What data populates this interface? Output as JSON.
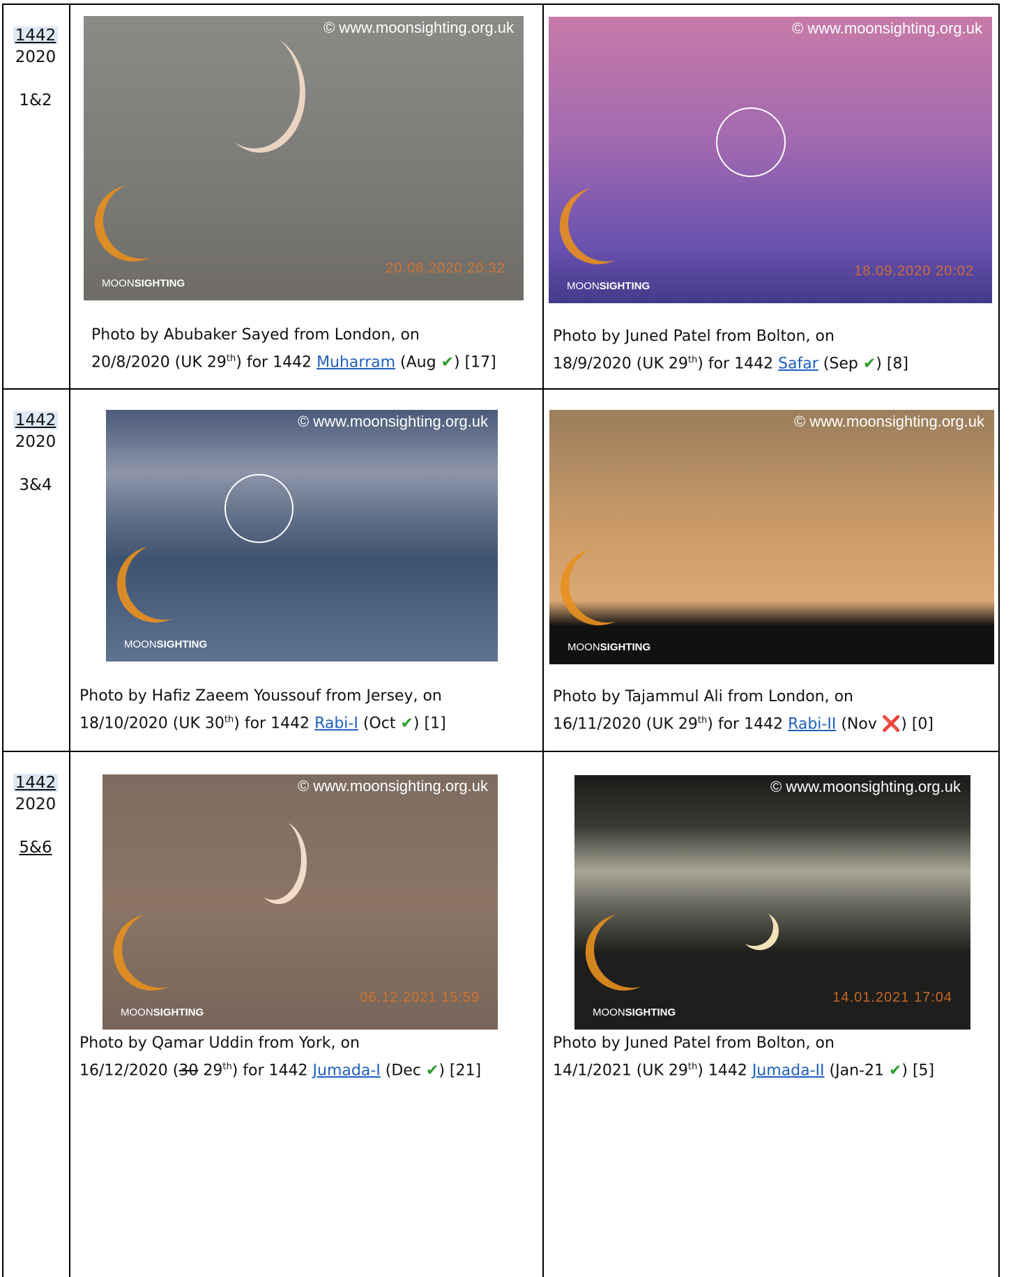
{
  "rows": [
    {
      "label": {
        "year": "1442",
        "greg": "2020",
        "months": "1&2"
      },
      "months_underline": false,
      "cells": [
        {
          "photo": {
            "watermark": "© www.moonsighting.org.uk",
            "stamp": "20.08.2020 20:32",
            "logo_a": "MOON",
            "logo_b": "SIGHTING"
          },
          "caption": {
            "line1": "Photo by Abubaker Sayed from London, on",
            "line2": [
              {
                "text": "20/8/2020 (UK 29",
                "style": "plain"
              },
              {
                "text": "th",
                "style": "sup"
              },
              {
                "text": ") for 1442 ",
                "style": "plain"
              },
              {
                "text": "Muharram",
                "style": "link"
              },
              {
                "text": " (Aug ",
                "style": "plain"
              },
              {
                "text": "✔",
                "style": "check"
              },
              {
                "text": ") [17]",
                "style": "plain"
              }
            ]
          }
        },
        {
          "photo": {
            "watermark": "© www.moonsighting.org.uk",
            "stamp": "18.09.2020 20:02",
            "logo_a": "MOON",
            "logo_b": "SIGHTING"
          },
          "caption": {
            "line1": "Photo by Juned Patel from Bolton, on",
            "line2": [
              {
                "text": "18/9/2020 (UK 29",
                "style": "plain"
              },
              {
                "text": "th",
                "style": "sup"
              },
              {
                "text": ") for 1442 ",
                "style": "plain"
              },
              {
                "text": "Safar",
                "style": "link"
              },
              {
                "text": " (Sep ",
                "style": "plain"
              },
              {
                "text": "✔",
                "style": "check"
              },
              {
                "text": ") [8]",
                "style": "plain"
              }
            ]
          }
        }
      ]
    },
    {
      "label": {
        "year": "1442",
        "greg": "2020",
        "months": "3&4"
      },
      "months_underline": false,
      "cells": [
        {
          "photo": {
            "watermark": "© www.moonsighting.org.uk",
            "logo_a": "MOON",
            "logo_b": "SIGHTING"
          },
          "caption": {
            "line1": "Photo by Hafiz Zaeem Youssouf from Jersey, on",
            "line2": [
              {
                "text": "18/10/2020 (UK 30",
                "style": "plain"
              },
              {
                "text": "th",
                "style": "sup"
              },
              {
                "text": ") for 1442 ",
                "style": "plain"
              },
              {
                "text": "Rabi-I",
                "style": "link"
              },
              {
                "text": " (Oct ",
                "style": "plain"
              },
              {
                "text": "✔",
                "style": "check"
              },
              {
                "text": ") [1]",
                "style": "plain"
              }
            ]
          }
        },
        {
          "photo": {
            "watermark": "© www.moonsighting.org.uk",
            "logo_a": "MOON",
            "logo_b": "SIGHTING"
          },
          "caption": {
            "line1": "Photo by Tajammul Ali from London, on",
            "line2": [
              {
                "text": "16/11/2020 (UK 29",
                "style": "plain"
              },
              {
                "text": "th",
                "style": "sup"
              },
              {
                "text": ") for 1442 ",
                "style": "plain"
              },
              {
                "text": "Rabi-II",
                "style": "link"
              },
              {
                "text": " (Nov ",
                "style": "plain"
              },
              {
                "text": "❌",
                "style": "cross"
              },
              {
                "text": ") [0]",
                "style": "plain"
              }
            ]
          }
        }
      ]
    },
    {
      "label": {
        "year": "1442",
        "greg": "2020",
        "months": "5&6"
      },
      "months_underline": true,
      "cells": [
        {
          "photo": {
            "watermark": "© www.moonsighting.org.uk",
            "stamp": "06.12.2021 15:59",
            "logo_a": "MOON",
            "logo_b": "SIGHTING"
          },
          "caption": {
            "line1": "Photo by Qamar Uddin from York, on",
            "line2": [
              {
                "text": "16/12/2020 (",
                "style": "plain"
              },
              {
                "text": "30",
                "style": "strike"
              },
              {
                "text": " 29",
                "style": "plain"
              },
              {
                "text": "th",
                "style": "sup"
              },
              {
                "text": ") for 1442 ",
                "style": "plain"
              },
              {
                "text": "Jumada-I",
                "style": "link"
              },
              {
                "text": " (Dec ",
                "style": "plain"
              },
              {
                "text": "✔",
                "style": "check"
              },
              {
                "text": ") [21]",
                "style": "plain"
              }
            ]
          }
        },
        {
          "photo": {
            "watermark": "© www.moonsighting.org.uk",
            "stamp": "14.01.2021 17:04",
            "logo_a": "MOON",
            "logo_b": "SIGHTING"
          },
          "caption": {
            "line1": "Photo by Juned Patel from Bolton, on",
            "line2": [
              {
                "text": "14/1/2021 (UK 29",
                "style": "plain"
              },
              {
                "text": "th",
                "style": "sup"
              },
              {
                "text": ") 1442 ",
                "style": "plain"
              },
              {
                "text": "Jumada-II",
                "style": "link"
              },
              {
                "text": " (Jan-21 ",
                "style": "plain"
              },
              {
                "text": "✔",
                "style": "check"
              },
              {
                "text": ") [5]",
                "style": "plain"
              }
            ]
          }
        }
      ]
    }
  ]
}
